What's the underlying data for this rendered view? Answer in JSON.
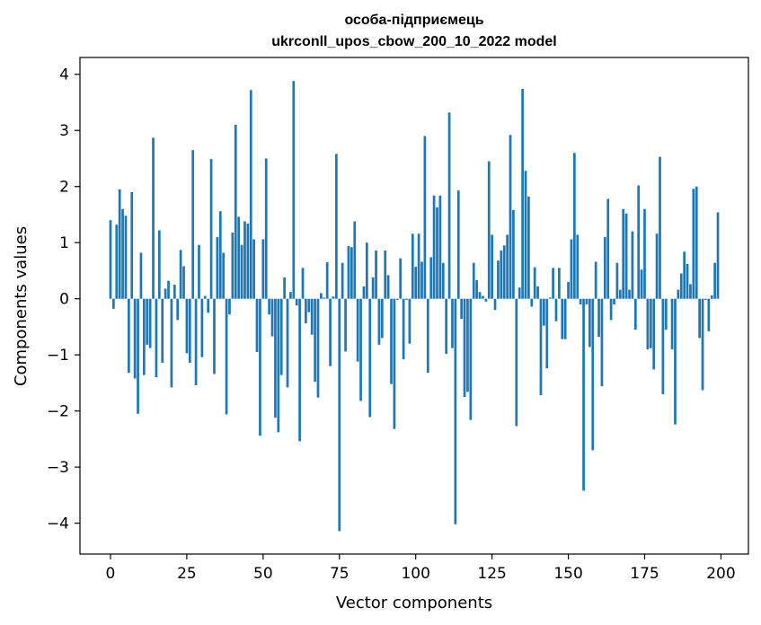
{
  "chart_data": {
    "type": "bar",
    "title": "особа-підприємець",
    "subtitle": "ukrconll_upos_cbow_200_10_2022 model",
    "xlabel": "Vector components",
    "ylabel": "Components values",
    "xlim": [
      -10,
      209
    ],
    "ylim": [
      -4.55,
      4.3
    ],
    "xticks": [
      0,
      25,
      50,
      75,
      100,
      125,
      150,
      175,
      200
    ],
    "xtick_labels": [
      "0",
      "25",
      "50",
      "75",
      "100",
      "125",
      "150",
      "175",
      "200"
    ],
    "yticks": [
      -4,
      -3,
      -2,
      -1,
      0,
      1,
      2,
      3,
      4
    ],
    "ytick_labels": [
      "−4",
      "−3",
      "−2",
      "−1",
      "0",
      "1",
      "2",
      "3",
      "4"
    ],
    "grid": false,
    "bar_color": "#1f77b4",
    "x": [
      0,
      1,
      2,
      3,
      4,
      5,
      6,
      7,
      8,
      9,
      10,
      11,
      12,
      13,
      14,
      15,
      16,
      17,
      18,
      19,
      20,
      21,
      22,
      23,
      24,
      25,
      26,
      27,
      28,
      29,
      30,
      31,
      32,
      33,
      34,
      35,
      36,
      37,
      38,
      39,
      40,
      41,
      42,
      43,
      44,
      45,
      46,
      47,
      48,
      49,
      50,
      51,
      52,
      53,
      54,
      55,
      56,
      57,
      58,
      59,
      60,
      61,
      62,
      63,
      64,
      65,
      66,
      67,
      68,
      69,
      70,
      71,
      72,
      73,
      74,
      75,
      76,
      77,
      78,
      79,
      80,
      81,
      82,
      83,
      84,
      85,
      86,
      87,
      88,
      89,
      90,
      91,
      92,
      93,
      94,
      95,
      96,
      97,
      98,
      99,
      100,
      101,
      102,
      103,
      104,
      105,
      106,
      107,
      108,
      109,
      110,
      111,
      112,
      113,
      114,
      115,
      116,
      117,
      118,
      119,
      120,
      121,
      122,
      123,
      124,
      125,
      126,
      127,
      128,
      129,
      130,
      131,
      132,
      133,
      134,
      135,
      136,
      137,
      138,
      139,
      140,
      141,
      142,
      143,
      144,
      145,
      146,
      147,
      148,
      149,
      150,
      151,
      152,
      153,
      154,
      155,
      156,
      157,
      158,
      159,
      160,
      161,
      162,
      163,
      164,
      165,
      166,
      167,
      168,
      169,
      170,
      171,
      172,
      173,
      174,
      175,
      176,
      177,
      178,
      179,
      180,
      181,
      182,
      183,
      184,
      185,
      186,
      187,
      188,
      189,
      190,
      191,
      192,
      193,
      194,
      195,
      196,
      197,
      198,
      199
    ],
    "values": [
      1.4,
      -0.18,
      1.32,
      1.95,
      1.6,
      1.48,
      -1.32,
      1.9,
      -1.42,
      -2.05,
      0.82,
      -1.36,
      -0.82,
      -0.88,
      2.87,
      -1.4,
      1.22,
      -1.14,
      0.18,
      0.32,
      -1.58,
      0.25,
      -0.38,
      0.87,
      0.58,
      -0.97,
      -1.14,
      2.65,
      -1.54,
      0.96,
      -1.04,
      0.05,
      -0.25,
      2.49,
      -1.34,
      1.1,
      1.56,
      0.82,
      -2.06,
      -0.28,
      1.18,
      3.1,
      1.46,
      0.96,
      1.38,
      1.34,
      3.72,
      1.06,
      -0.95,
      -2.44,
      1.06,
      2.5,
      -0.28,
      -0.67,
      -2.12,
      -2.38,
      -1.36,
      0.38,
      -1.58,
      0.12,
      3.88,
      -0.12,
      -2.54,
      0.55,
      -0.44,
      -0.24,
      -0.64,
      -1.48,
      -1.76,
      0.1,
      0.02,
      0.65,
      -1.2,
      0.04,
      2.58,
      -4.14,
      0.64,
      -0.94,
      0.94,
      0.92,
      1.38,
      -1.12,
      -1.82,
      0.22,
      1.0,
      -2.11,
      0.38,
      0.86,
      -0.82,
      -0.7,
      0.86,
      0.42,
      -1.52,
      -2.32,
      -0.02,
      0.72,
      -1.08,
      -0.02,
      -0.8,
      1.16,
      0.57,
      1.16,
      0.66,
      2.9,
      -1.32,
      0.74,
      1.84,
      1.63,
      1.84,
      0.64,
      -0.98,
      3.32,
      -0.88,
      -4.02,
      1.93,
      -0.36,
      -1.75,
      -1.66,
      -2.16,
      0.64,
      0.33,
      0.12,
      0.05,
      -0.05,
      2.45,
      1.14,
      -0.2,
      0.68,
      0.86,
      0.95,
      1.14,
      2.92,
      1.58,
      -2.27,
      0.2,
      3.74,
      2.28,
      1.82,
      -0.14,
      0.56,
      0.22,
      -1.72,
      -0.48,
      -1.24,
      0.02,
      0.55,
      -0.4,
      0.55,
      -0.72,
      -0.72,
      0.3,
      1.06,
      2.6,
      1.14,
      -0.1,
      -3.42,
      -0.1,
      -0.86,
      -2.7,
      0.66,
      -0.68,
      -1.56,
      1.1,
      1.78,
      -0.38,
      -0.1,
      0.64,
      0.16,
      1.6,
      1.52,
      0.16,
      1.2,
      -0.55,
      2.02,
      0.52,
      1.6,
      -0.9,
      -0.88,
      -1.26,
      1.16,
      2.53,
      -1.7,
      -0.55,
      0.0,
      -0.9,
      -2.24,
      0.16,
      0.45,
      0.84,
      0.62,
      0.26,
      1.96,
      2.0,
      -0.7,
      -1.63,
      -0.02,
      -0.58,
      0.06,
      0.64,
      1.54
    ]
  }
}
